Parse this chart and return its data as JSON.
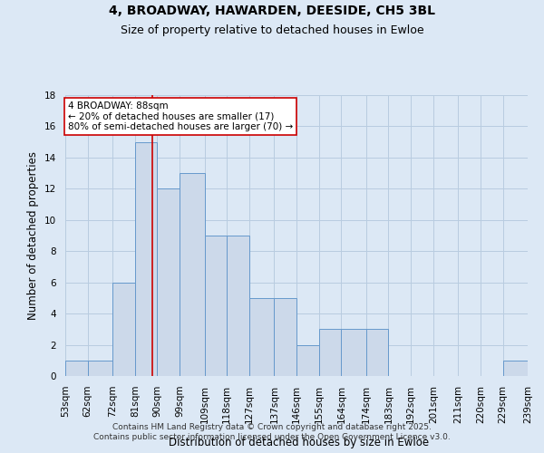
{
  "title_line1": "4, BROADWAY, HAWARDEN, DEESIDE, CH5 3BL",
  "title_line2": "Size of property relative to detached houses in Ewloe",
  "xlabel": "Distribution of detached houses by size in Ewloe",
  "ylabel": "Number of detached properties",
  "bin_edges": [
    53,
    62,
    72,
    81,
    90,
    99,
    109,
    118,
    127,
    137,
    146,
    155,
    164,
    174,
    183,
    192,
    201,
    211,
    220,
    229,
    239
  ],
  "bar_heights": [
    1,
    1,
    6,
    15,
    12,
    13,
    9,
    9,
    5,
    5,
    2,
    3,
    3,
    3,
    0,
    0,
    0,
    0,
    0,
    1
  ],
  "bar_facecolor": "#ccd9ea",
  "bar_edgecolor": "#6699cc",
  "bar_linewidth": 0.7,
  "grid_color": "#b8cce0",
  "background_color": "#dce8f5",
  "red_line_x": 88,
  "red_line_color": "#cc0000",
  "annotation_text": "4 BROADWAY: 88sqm\n← 20% of detached houses are smaller (17)\n80% of semi-detached houses are larger (70) →",
  "annotation_box_edgecolor": "#cc0000",
  "annotation_box_facecolor": "#ffffff",
  "ylim": [
    0,
    18
  ],
  "yticks": [
    0,
    2,
    4,
    6,
    8,
    10,
    12,
    14,
    16,
    18
  ],
  "footer_line1": "Contains HM Land Registry data © Crown copyright and database right 2025.",
  "footer_line2": "Contains public sector information licensed under the Open Government Licence v3.0.",
  "title_fontsize": 10,
  "subtitle_fontsize": 9,
  "axis_label_fontsize": 8.5,
  "tick_fontsize": 7.5,
  "annotation_fontsize": 7.5,
  "footer_fontsize": 6.5
}
